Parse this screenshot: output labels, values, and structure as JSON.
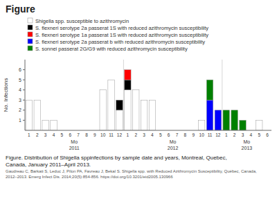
{
  "chart_data": {
    "type": "bar",
    "stacked": true,
    "title": "Figure",
    "y_label": "No. Infections",
    "x_label": "Mo",
    "caption": "Figure. Distribution of Shigella sppinfections by sample date and years, Montreal, Quebec,\nCanada, January 2011–April 2013.",
    "citation": "Gaudreau C, Barkati S, Leduc J, Pilon PA, Favreau J, Bekal S. Shigella spp. with Reduced Azithromycin Susceptibility, Québec, Canada, 2012–2013. Emerg Infect Dis. 2014;20(5):854-856. https://doi.org/10.3201/eid2005.130966",
    "categories": [
      "1",
      "2",
      "3",
      "4",
      "5",
      "6",
      "7",
      "8",
      "9",
      "10",
      "11",
      "12",
      "1",
      "2",
      "3",
      "4",
      "5",
      "6",
      "7",
      "8",
      "9",
      "10",
      "11",
      "12",
      "1",
      "2",
      "3",
      "4",
      "5",
      "6"
    ],
    "groups": [
      {
        "label": "2011",
        "size": 12
      },
      {
        "label": "2012",
        "size": 12
      },
      {
        "label": "2013",
        "size": 6
      }
    ],
    "series": [
      {
        "name": "Shigella spp. susceptible to azithromycin",
        "color": "white",
        "values": [
          3,
          3,
          1,
          1,
          0,
          0,
          0,
          0,
          0,
          4,
          5,
          2,
          4,
          4,
          3,
          3,
          0,
          0,
          0,
          0,
          0,
          1,
          0,
          0,
          0,
          0,
          0,
          0,
          1,
          0
        ]
      },
      {
        "name": "S. flexneri serotype 2a passerat 1S with reduced azithromycin susceptibility",
        "color": "black",
        "values": [
          0,
          0,
          0,
          0,
          0,
          0,
          0,
          0,
          0,
          0,
          0,
          1,
          1,
          0,
          0,
          0,
          0,
          0,
          0,
          0,
          0,
          0,
          0,
          0,
          0,
          0,
          0,
          0,
          0,
          0
        ]
      },
      {
        "name": "S. flexneri serotype 1a passerat 1S with reduced azithromycin susceptibility",
        "color": "red",
        "values": [
          0,
          0,
          0,
          0,
          0,
          0,
          0,
          0,
          0,
          0,
          0,
          0,
          1,
          0,
          0,
          0,
          0,
          0,
          0,
          0,
          0,
          0,
          0,
          0,
          0,
          0,
          0,
          0,
          0,
          0
        ]
      },
      {
        "name": "S. flexneri serotype 2a passerat b with reduced azithromycin susceptibility",
        "color": "blue",
        "values": [
          0,
          0,
          0,
          0,
          0,
          0,
          0,
          0,
          0,
          0,
          0,
          0,
          0,
          0,
          0,
          0,
          0,
          0,
          0,
          0,
          0,
          0,
          3,
          2,
          0,
          0,
          0,
          0,
          0,
          0
        ]
      },
      {
        "name": "S. sonnei passerat 2G/G9 with reduced azithromycin susceptibility",
        "color": "green",
        "values": [
          0,
          0,
          0,
          0,
          0,
          0,
          0,
          0,
          0,
          0,
          0,
          0,
          0,
          0,
          0,
          0,
          0,
          0,
          0,
          0,
          0,
          0,
          2,
          0,
          2,
          2,
          1,
          0,
          0,
          0
        ]
      }
    ],
    "ylim": [
      0,
      7
    ],
    "yticks": [
      1,
      2,
      3,
      4,
      5,
      6
    ],
    "grid": false,
    "legend": "top"
  }
}
